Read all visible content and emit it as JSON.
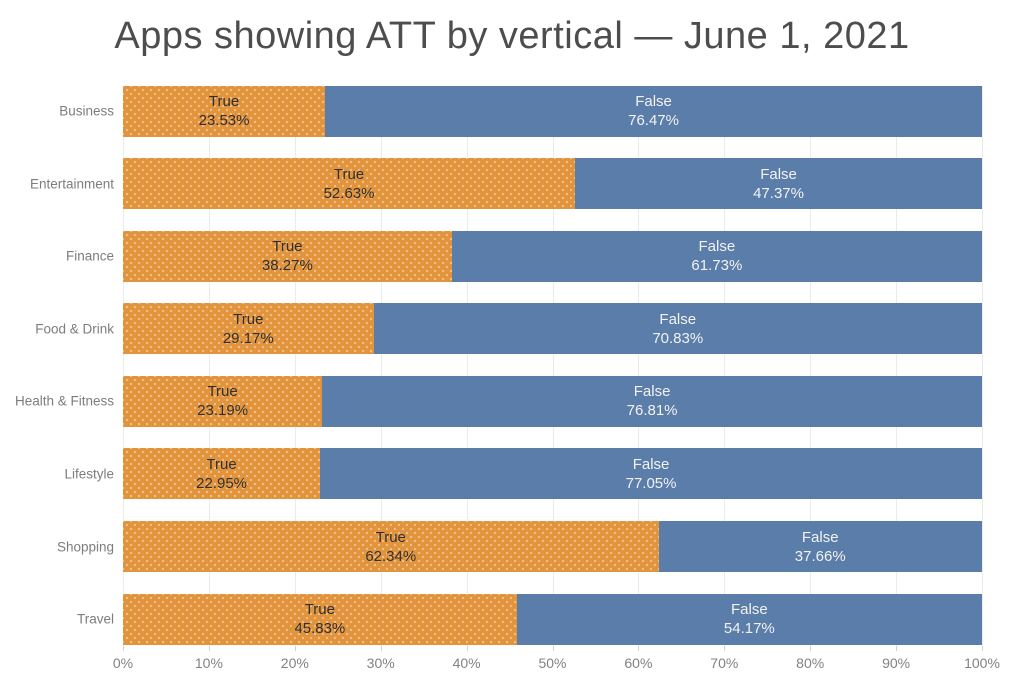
{
  "title": "Apps showing ATT by vertical — June 1, 2021",
  "colors": {
    "true_segment": "#e2943c",
    "false_segment": "#5b7da9",
    "title_text": "#4d4d4d",
    "axis_text": "#828282",
    "category_text": "#7d7d7d",
    "true_label_text": "#303030",
    "false_label_text": "#f2f2f2",
    "gridline": "#ebebeb",
    "background": "#ffffff"
  },
  "chart_data": {
    "type": "bar",
    "orientation": "horizontal",
    "stacked": true,
    "title": "Apps showing ATT by vertical — June 1, 2021",
    "categories": [
      "Business",
      "Entertainment",
      "Finance",
      "Food & Drink",
      "Health & Fitness",
      "Lifestyle",
      "Shopping",
      "Travel"
    ],
    "series": [
      {
        "name": "True",
        "color": "#e2943c",
        "values": [
          23.53,
          52.63,
          38.27,
          29.17,
          23.19,
          22.95,
          62.34,
          45.83
        ]
      },
      {
        "name": "False",
        "color": "#5b7da9",
        "values": [
          76.47,
          47.37,
          61.73,
          70.83,
          76.81,
          77.05,
          37.66,
          54.17
        ]
      }
    ],
    "segment_label_format": "{series}\n{value}%",
    "x_ticks": [
      "0%",
      "10%",
      "20%",
      "30%",
      "40%",
      "50%",
      "60%",
      "70%",
      "80%",
      "90%",
      "100%"
    ],
    "xlim": [
      0,
      100
    ],
    "xlabel": "",
    "ylabel": "",
    "grid": true,
    "legend": "none"
  }
}
